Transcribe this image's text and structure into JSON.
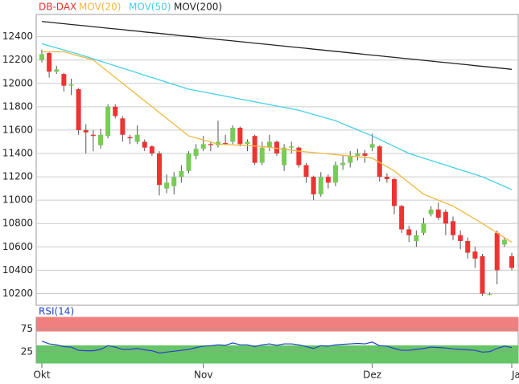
{
  "chart_data": [
    {
      "type": "candlestick",
      "categories": [
        "Okt",
        null,
        null,
        null,
        null,
        null,
        null,
        null,
        null,
        null,
        null,
        null,
        null,
        null,
        null,
        null,
        null,
        null,
        null,
        null,
        null,
        null,
        "Nov",
        null,
        null,
        null,
        null,
        null,
        null,
        null,
        null,
        null,
        null,
        null,
        null,
        null,
        null,
        null,
        null,
        null,
        null,
        null,
        null,
        null,
        null,
        "Dez",
        null,
        null,
        null,
        null,
        null,
        null,
        null,
        null,
        null,
        null,
        null,
        null,
        null,
        null,
        null,
        null,
        null,
        null,
        "Ja"
      ],
      "ylim": [
        10100,
        12590
      ],
      "yticks": [
        10200,
        10400,
        10600,
        10800,
        11000,
        11200,
        11400,
        11600,
        11800,
        12000,
        12200,
        12400
      ],
      "grid": true,
      "series": [
        {
          "name": "DB-DAX",
          "color": "#e03030",
          "up_color": "#77cc55",
          "down_color": "#ee3333",
          "open": [
            12200,
            12260,
            12100,
            12080,
            11980,
            11950,
            11600,
            11560,
            11470,
            11550,
            11800,
            11700,
            11540,
            11500,
            11500,
            11460,
            11400,
            11100,
            11120,
            11200,
            11250,
            11380,
            11440,
            11480,
            11470,
            11490,
            11500,
            11620,
            11480,
            11550,
            11320,
            11450,
            11500,
            11300,
            11450,
            11450,
            11300,
            11200,
            11050,
            11200,
            11150,
            11300,
            11320,
            11380,
            11400,
            11450,
            11460,
            11200,
            11180,
            10950,
            10750,
            10650,
            10720,
            10880,
            10920,
            10900,
            10820,
            10700,
            10650,
            10560,
            10520,
            10190,
            10720,
            10620,
            10520
          ],
          "high": [
            12290,
            12270,
            12150,
            12090,
            12040,
            11960,
            11650,
            11600,
            11610,
            11820,
            11820,
            11720,
            11560,
            11640,
            11520,
            11470,
            11420,
            11220,
            11240,
            11300,
            11420,
            11480,
            11550,
            11500,
            11680,
            11560,
            11640,
            11630,
            11520,
            11560,
            11500,
            11560,
            11510,
            11480,
            11500,
            11460,
            11320,
            11210,
            11240,
            11220,
            11330,
            11380,
            11420,
            11440,
            11430,
            11570,
            11470,
            11230,
            11190,
            10960,
            10780,
            10740,
            10850,
            10950,
            10980,
            10920,
            10860,
            10740,
            10680,
            10600,
            10540,
            10210,
            10740,
            10680,
            10550
          ],
          "low": [
            12180,
            12050,
            12080,
            11930,
            11900,
            11560,
            11400,
            11420,
            11440,
            11530,
            11700,
            11500,
            11480,
            11480,
            11420,
            11380,
            11040,
            11060,
            11050,
            11150,
            11230,
            11350,
            11420,
            11420,
            11450,
            11470,
            11480,
            11460,
            11420,
            11300,
            11300,
            11420,
            11380,
            11250,
            11400,
            11280,
            11150,
            11000,
            11030,
            11100,
            11120,
            11260,
            11280,
            11340,
            11320,
            11420,
            11160,
            11150,
            10880,
            10720,
            10640,
            10600,
            10700,
            10860,
            10830,
            10700,
            10660,
            10580,
            10500,
            10420,
            10180,
            10185,
            10280,
            10600,
            10400
          ],
          "close": [
            12250,
            12100,
            12120,
            11980,
            11990,
            11600,
            11580,
            11550,
            11560,
            11800,
            11720,
            11560,
            11530,
            11560,
            11450,
            11400,
            11130,
            11150,
            11200,
            11250,
            11400,
            11440,
            11480,
            11470,
            11500,
            11480,
            11620,
            11480,
            11500,
            11320,
            11450,
            11500,
            11400,
            11450,
            11460,
            11300,
            11200,
            11050,
            11200,
            11150,
            11300,
            11320,
            11380,
            11400,
            11380,
            11480,
            11200,
            11180,
            10950,
            10750,
            10700,
            10700,
            10800,
            10920,
            10850,
            10800,
            10700,
            10650,
            10550,
            10500,
            10200,
            10195,
            10400,
            10660,
            10420
          ]
        },
        {
          "name": "MOV(20)",
          "color": "#f0b840",
          "values": [
            12270,
            12270,
            12270,
            12270,
            12253,
            12235,
            12218,
            12200,
            12150,
            12100,
            12050,
            12000,
            11950,
            11900,
            11850,
            11800,
            11750,
            11700,
            11650,
            11600,
            11550,
            11533,
            11515,
            11498,
            11480,
            11477,
            11473,
            11470,
            11467,
            11463,
            11460,
            11452,
            11444,
            11436,
            11428,
            11420,
            11414,
            11408,
            11402,
            11396,
            11390,
            11384,
            11378,
            11372,
            11366,
            11360,
            11323,
            11287,
            11250,
            11200,
            11150,
            11100,
            11050,
            11025,
            11000,
            10975,
            10950,
            10913,
            10875,
            10838,
            10800,
            10760,
            10720,
            10680,
            10640
          ]
        },
        {
          "name": "MOV(50)",
          "color": "#44d0e8",
          "values": [
            12340,
            12322,
            12304,
            12286,
            12268,
            12250,
            12230,
            12210,
            12190,
            12170,
            12150,
            12130,
            12110,
            12090,
            12070,
            12050,
            12030,
            12010,
            11990,
            11970,
            11950,
            11938,
            11926,
            11914,
            11902,
            11890,
            11878,
            11866,
            11854,
            11842,
            11830,
            11818,
            11806,
            11794,
            11782,
            11770,
            11752,
            11734,
            11716,
            11698,
            11680,
            11654,
            11628,
            11602,
            11576,
            11550,
            11520,
            11490,
            11460,
            11430,
            11400,
            11380,
            11360,
            11340,
            11320,
            11300,
            11280,
            11260,
            11240,
            11220,
            11200,
            11172,
            11145,
            11118,
            11090
          ]
        },
        {
          "name": "MOV(200)",
          "color": "#222222",
          "values": [
            12530,
            12524,
            12517,
            12511,
            12504,
            12498,
            12492,
            12485,
            12479,
            12472,
            12466,
            12460,
            12453,
            12447,
            12440,
            12434,
            12428,
            12421,
            12415,
            12408,
            12402,
            12396,
            12389,
            12383,
            12376,
            12370,
            12364,
            12357,
            12351,
            12344,
            12338,
            12332,
            12325,
            12319,
            12312,
            12306,
            12300,
            12293,
            12287,
            12280,
            12274,
            12268,
            12261,
            12255,
            12248,
            12242,
            12236,
            12229,
            12223,
            12216,
            12210,
            12204,
            12197,
            12191,
            12184,
            12178,
            12172,
            12165,
            12159,
            12152,
            12146,
            12140,
            12133,
            12127,
            12120
          ]
        }
      ]
    },
    {
      "type": "line",
      "title": "RSI(14)",
      "color": "#2244cc",
      "ylim": [
        0,
        100
      ],
      "yticks": [
        25,
        75
      ],
      "zones": [
        {
          "from": 70,
          "to": 100,
          "color": "#f08080"
        },
        {
          "from": 0,
          "to": 38,
          "color": "#66c566"
        }
      ],
      "values": [
        48,
        42,
        40,
        36,
        35,
        28,
        27,
        27,
        30,
        38,
        35,
        30,
        30,
        32,
        29,
        27,
        22,
        24,
        26,
        28,
        30,
        34,
        37,
        38,
        40,
        39,
        44,
        40,
        40,
        36,
        40,
        42,
        39,
        42,
        42,
        40,
        36,
        32,
        38,
        37,
        40,
        41,
        42,
        43,
        42,
        46,
        38,
        37,
        32,
        28,
        28,
        30,
        32,
        35,
        34,
        33,
        31,
        30,
        29,
        28,
        24,
        25,
        32,
        37,
        34
      ]
    }
  ]
}
